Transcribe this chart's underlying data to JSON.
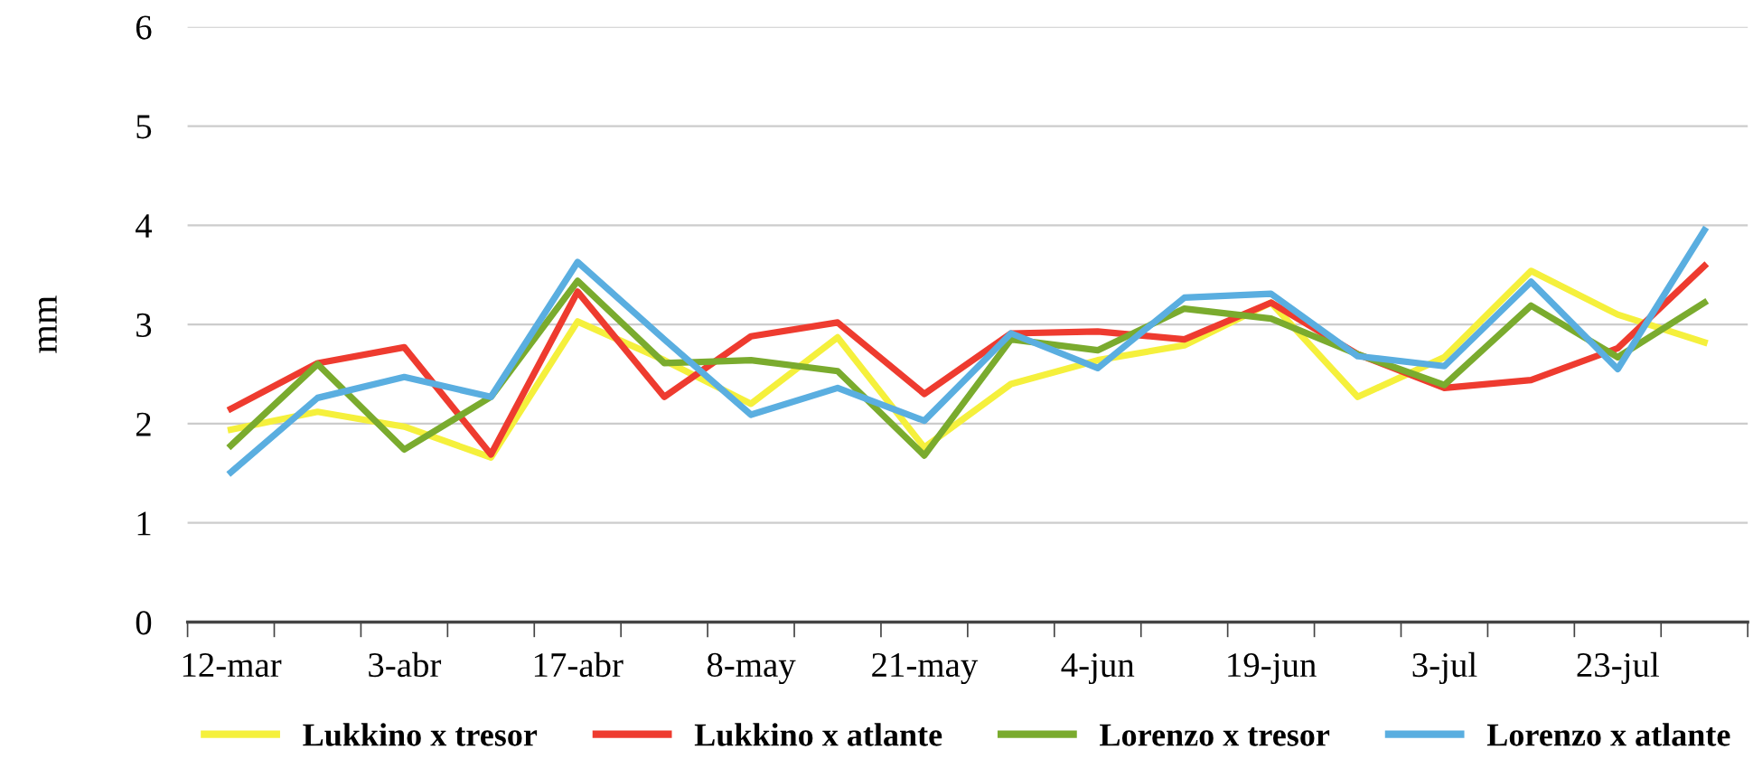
{
  "chart_data": {
    "type": "line",
    "ylabel": "mm",
    "categories": [
      "12-mar",
      null,
      "3-abr",
      null,
      "17-abr",
      null,
      "8-may",
      null,
      "21-may",
      null,
      "4-jun",
      null,
      "19-jun",
      null,
      "3-jul",
      null,
      "23-jul",
      null
    ],
    "series": [
      {
        "name": "Lukkino x tresor",
        "color": "#f5f03c",
        "values": [
          1.94,
          2.12,
          1.97,
          1.66,
          3.03,
          2.64,
          2.2,
          2.87,
          1.76,
          2.4,
          2.64,
          2.79,
          3.22,
          2.27,
          2.67,
          3.54,
          3.1,
          2.82
        ]
      },
      {
        "name": "Lukkino x atlante",
        "color": "#ee3b2f",
        "values": [
          2.15,
          2.61,
          2.77,
          1.69,
          3.33,
          2.27,
          2.88,
          3.02,
          2.3,
          2.91,
          2.93,
          2.85,
          3.22,
          2.7,
          2.36,
          2.44,
          2.76,
          3.59
        ]
      },
      {
        "name": "Lorenzo x tresor",
        "color": "#7aab2e",
        "values": [
          1.78,
          2.6,
          1.74,
          2.27,
          3.44,
          2.61,
          2.64,
          2.53,
          1.68,
          2.85,
          2.74,
          3.16,
          3.06,
          2.7,
          2.39,
          3.19,
          2.67,
          3.22
        ]
      },
      {
        "name": "Lorenzo x atlante",
        "color": "#5aaee0",
        "values": [
          1.51,
          2.26,
          2.47,
          2.27,
          3.63,
          2.85,
          2.09,
          2.36,
          2.03,
          2.91,
          2.56,
          3.27,
          3.31,
          2.68,
          2.58,
          3.43,
          2.55,
          3.95
        ]
      }
    ],
    "ylim": [
      0,
      6
    ],
    "yticks": [
      0,
      1,
      2,
      3,
      4,
      5,
      6
    ],
    "grid": "y",
    "legend": "bottom",
    "marker": "none",
    "line_style": "solid"
  }
}
